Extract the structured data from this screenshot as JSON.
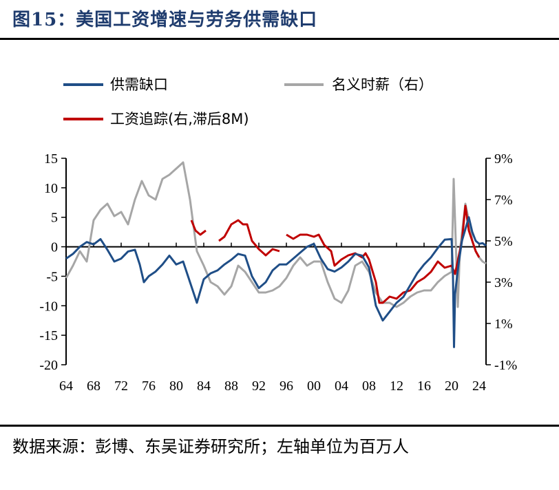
{
  "title": "图15：美国工资增速与劳务供需缺口",
  "source_note": "数据来源：彭博、东吴证券研究所；左轴单位为百万人",
  "colors": {
    "series_gap": "#1f4e87",
    "series_wage": "#a6a6a6",
    "series_tracker": "#c00000",
    "title": "#1f3c6e"
  },
  "chart_data": {
    "type": "line",
    "x_ticks": [
      "64",
      "68",
      "72",
      "76",
      "80",
      "84",
      "88",
      "92",
      "96",
      "00",
      "04",
      "08",
      "12",
      "16",
      "20",
      "24"
    ],
    "x_range": [
      1964,
      2025
    ],
    "y_left_ticks": [
      "15",
      "10",
      "5",
      "0",
      "-5",
      "-10",
      "-15",
      "-20"
    ],
    "y_left_range": [
      -20,
      15
    ],
    "y_right_ticks": [
      "9%",
      "7%",
      "5%",
      "3%",
      "1%",
      "-1%"
    ],
    "y_right_range": [
      -1,
      9
    ],
    "legend": [
      {
        "name": "供需缺口",
        "color": "#1f4e87"
      },
      {
        "name": "名义时薪（右）",
        "color": "#a6a6a6"
      },
      {
        "name": "工资追踪(右,滞后8M)",
        "color": "#c00000"
      }
    ],
    "series": [
      {
        "name": "供需缺口",
        "axis": "left",
        "color": "#1f4e87",
        "points": [
          [
            1964,
            -2
          ],
          [
            1965,
            -1.2
          ],
          [
            1966,
            0
          ],
          [
            1967,
            0.8
          ],
          [
            1968,
            0.4
          ],
          [
            1969,
            1.3
          ],
          [
            1970,
            -0.5
          ],
          [
            1971,
            -2.5
          ],
          [
            1972,
            -2
          ],
          [
            1973,
            -0.8
          ],
          [
            1974,
            -0.5
          ],
          [
            1974.7,
            -3
          ],
          [
            1975.3,
            -6
          ],
          [
            1976,
            -5
          ],
          [
            1977,
            -4.2
          ],
          [
            1978,
            -3
          ],
          [
            1979,
            -1.5
          ],
          [
            1980,
            -3
          ],
          [
            1981,
            -2.5
          ],
          [
            1982,
            -6
          ],
          [
            1983,
            -9.5
          ],
          [
            1984,
            -5.5
          ],
          [
            1985,
            -4.5
          ],
          [
            1986,
            -4
          ],
          [
            1987,
            -3
          ],
          [
            1988,
            -2.2
          ],
          [
            1989,
            -1.2
          ],
          [
            1990,
            -1.5
          ],
          [
            1991,
            -5
          ],
          [
            1992,
            -7
          ],
          [
            1993,
            -6
          ],
          [
            1994,
            -4
          ],
          [
            1995,
            -3
          ],
          [
            1996,
            -3
          ],
          [
            1997,
            -2
          ],
          [
            1998,
            -1
          ],
          [
            1999,
            0
          ],
          [
            2000,
            0.5
          ],
          [
            2001,
            -2
          ],
          [
            2002,
            -3.8
          ],
          [
            2003,
            -4.2
          ],
          [
            2004,
            -3.5
          ],
          [
            2005,
            -2.5
          ],
          [
            2006,
            -1.2
          ],
          [
            2007,
            -1.5
          ],
          [
            2008,
            -3.5
          ],
          [
            2009,
            -10
          ],
          [
            2010,
            -12.5
          ],
          [
            2011,
            -11
          ],
          [
            2012,
            -9.5
          ],
          [
            2013,
            -8.5
          ],
          [
            2014,
            -6.5
          ],
          [
            2015,
            -4.5
          ],
          [
            2016,
            -3
          ],
          [
            2017,
            -1.8
          ],
          [
            2018,
            -0.2
          ],
          [
            2019,
            1.2
          ],
          [
            2020,
            1.3
          ],
          [
            2020.2,
            -5
          ],
          [
            2020.35,
            -17
          ],
          [
            2020.5,
            -8
          ],
          [
            2021,
            -3
          ],
          [
            2021.5,
            1
          ],
          [
            2022,
            3
          ],
          [
            2022.5,
            5
          ],
          [
            2023,
            2.5
          ],
          [
            2023.5,
            1
          ],
          [
            2024,
            0.5
          ],
          [
            2024.5,
            0.6
          ],
          [
            2025,
            0.2
          ]
        ]
      },
      {
        "name": "名义时薪（右）",
        "axis": "right",
        "color": "#a6a6a6",
        "points": [
          [
            1964,
            3.2
          ],
          [
            1965,
            3.8
          ],
          [
            1966,
            4.5
          ],
          [
            1967,
            4
          ],
          [
            1968,
            6
          ],
          [
            1969,
            6.5
          ],
          [
            1970,
            6.8
          ],
          [
            1971,
            6.2
          ],
          [
            1972,
            6.4
          ],
          [
            1973,
            5.8
          ],
          [
            1974,
            7
          ],
          [
            1975,
            7.9
          ],
          [
            1976,
            7.2
          ],
          [
            1977,
            7
          ],
          [
            1978,
            8
          ],
          [
            1979,
            8.2
          ],
          [
            1980,
            8.5
          ],
          [
            1981,
            8.8
          ],
          [
            1982,
            7
          ],
          [
            1983,
            4.5
          ],
          [
            1984,
            3.8
          ],
          [
            1985,
            3
          ],
          [
            1986,
            2.8
          ],
          [
            1987,
            2.4
          ],
          [
            1988,
            2.8
          ],
          [
            1989,
            3.8
          ],
          [
            1990,
            3.5
          ],
          [
            1991,
            3
          ],
          [
            1992,
            2.5
          ],
          [
            1993,
            2.5
          ],
          [
            1994,
            2.6
          ],
          [
            1995,
            2.8
          ],
          [
            1996,
            3.2
          ],
          [
            1997,
            3.8
          ],
          [
            1998,
            4.2
          ],
          [
            1999,
            3.8
          ],
          [
            2000,
            4
          ],
          [
            2001,
            4
          ],
          [
            2002,
            3
          ],
          [
            2003,
            2.2
          ],
          [
            2004,
            2
          ],
          [
            2005,
            2.6
          ],
          [
            2006,
            3.8
          ],
          [
            2007,
            4
          ],
          [
            2008,
            3.5
          ],
          [
            2009,
            2.5
          ],
          [
            2010,
            2
          ],
          [
            2011,
            2
          ],
          [
            2012,
            1.8
          ],
          [
            2013,
            2
          ],
          [
            2014,
            2.3
          ],
          [
            2015,
            2.5
          ],
          [
            2016,
            2.6
          ],
          [
            2017,
            2.6
          ],
          [
            2018,
            3
          ],
          [
            2019,
            3.3
          ],
          [
            2020,
            3.5
          ],
          [
            2020.3,
            8
          ],
          [
            2020.6,
            5
          ],
          [
            2020.9,
            1.8
          ],
          [
            2021.2,
            4.5
          ],
          [
            2022,
            6.8
          ],
          [
            2022.5,
            6
          ],
          [
            2023,
            5
          ],
          [
            2023.5,
            4.5
          ],
          [
            2024,
            4.2
          ],
          [
            2024.5,
            4
          ],
          [
            2025,
            3.9
          ]
        ]
      },
      {
        "name": "工资追踪(右,滞后8M)",
        "axis": "right",
        "color": "#c00000",
        "segments": [
          [
            [
              1982.2,
              6
            ],
            [
              1982.8,
              5.5
            ],
            [
              1983.5,
              5.3
            ],
            [
              1984.3,
              5.5
            ]
          ],
          [
            [
              1986.2,
              5
            ],
            [
              1987,
              5.2
            ],
            [
              1988,
              5.8
            ],
            [
              1989,
              6
            ],
            [
              1989.7,
              5.8
            ],
            [
              1990.3,
              5.8
            ],
            [
              1991,
              5
            ],
            [
              1992,
              4.6
            ],
            [
              1993,
              4.3
            ],
            [
              1994,
              4.6
            ],
            [
              1995,
              4.5
            ]
          ],
          [
            [
              1996,
              5.3
            ],
            [
              1997,
              5.1
            ],
            [
              1998,
              5.3
            ],
            [
              1999,
              5.3
            ],
            [
              2000,
              5.2
            ],
            [
              2000.7,
              5.3
            ],
            [
              2001.5,
              4.8
            ],
            [
              2002.5,
              4.5
            ],
            [
              2003,
              3.8
            ],
            [
              2004,
              4.1
            ],
            [
              2005,
              4.3
            ],
            [
              2006,
              4.4
            ],
            [
              2007,
              4.2
            ],
            [
              2007.5,
              4.4
            ],
            [
              2008,
              4.1
            ],
            [
              2009,
              3
            ],
            [
              2009.5,
              2
            ],
            [
              2010,
              2
            ],
            [
              2011,
              2.3
            ],
            [
              2012,
              2.2
            ],
            [
              2013,
              2.5
            ],
            [
              2014,
              2.6
            ],
            [
              2015,
              3
            ],
            [
              2016,
              3.2
            ],
            [
              2017,
              3.5
            ],
            [
              2018,
              4
            ],
            [
              2019,
              3.7
            ],
            [
              2020,
              3.8
            ],
            [
              2020.5,
              3.4
            ],
            [
              2021,
              4.2
            ],
            [
              2021.5,
              5
            ],
            [
              2022,
              6.7
            ],
            [
              2022.5,
              5.5
            ],
            [
              2023,
              5
            ],
            [
              2023.5,
              4.5
            ],
            [
              2024,
              4.2
            ]
          ]
        ]
      }
    ]
  }
}
